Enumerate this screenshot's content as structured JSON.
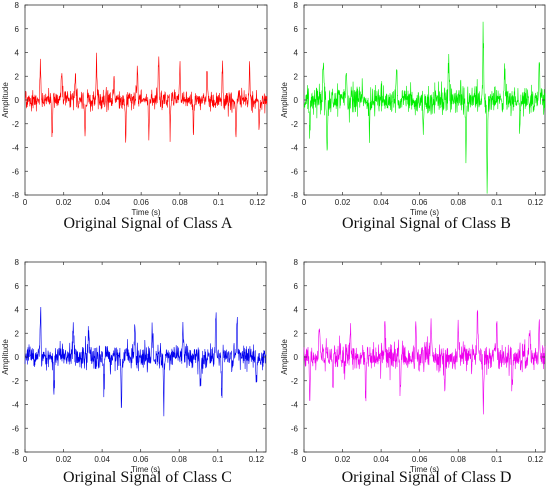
{
  "chart_data": [
    {
      "type": "line",
      "caption": "Original Signal of Class A",
      "xlabel": "Time (s)",
      "ylabel": "Amplitude",
      "xlim": [
        0,
        0.125
      ],
      "ylim": [
        -8,
        8
      ],
      "xticks": [
        "0",
        "0.02",
        "0.04",
        "0.06",
        "0.08",
        "0.1",
        "0.12"
      ],
      "yticks": [
        "-8",
        "-6",
        "-4",
        "-2",
        "0",
        "2",
        "4",
        "6",
        "8"
      ],
      "color": "#ff0000",
      "signal": {
        "samples": 900,
        "base_amplitude": 0.75,
        "seed": 11,
        "spikes": [
          [
            0.008,
            3.4
          ],
          [
            0.014,
            -3.2
          ],
          [
            0.019,
            3.0
          ],
          [
            0.026,
            2.6
          ],
          [
            0.031,
            -3.0
          ],
          [
            0.037,
            3.6
          ],
          [
            0.046,
            2.8
          ],
          [
            0.052,
            -3.5
          ],
          [
            0.058,
            3.1
          ],
          [
            0.064,
            -3.3
          ],
          [
            0.069,
            3.5
          ],
          [
            0.075,
            -3.0
          ],
          [
            0.08,
            2.8
          ],
          [
            0.087,
            -3.2
          ],
          [
            0.094,
            3.0
          ],
          [
            0.102,
            3.2
          ],
          [
            0.109,
            -3.3
          ],
          [
            0.116,
            3.0
          ],
          [
            0.121,
            -3.1
          ]
        ]
      }
    },
    {
      "type": "line",
      "caption": "Original Signal of Class B",
      "xlabel": "Time (s)",
      "ylabel": "Amplitude",
      "xlim": [
        0,
        0.125
      ],
      "ylim": [
        -8,
        8
      ],
      "xticks": [
        "0",
        "0.02",
        "0.04",
        "0.06",
        "0.08",
        "0.1",
        "0.12"
      ],
      "yticks": [
        "-8",
        "-6",
        "-4",
        "-2",
        "0",
        "2",
        "4",
        "6",
        "8"
      ],
      "color": "#00ee00",
      "signal": {
        "samples": 900,
        "base_amplitude": 1.1,
        "seed": 23,
        "spikes": [
          [
            0.003,
            -3.0
          ],
          [
            0.01,
            4.2
          ],
          [
            0.012,
            -5.2
          ],
          [
            0.022,
            3.0
          ],
          [
            0.034,
            -3.2
          ],
          [
            0.048,
            2.8
          ],
          [
            0.062,
            -3.0
          ],
          [
            0.075,
            3.2
          ],
          [
            0.084,
            -5.0
          ],
          [
            0.093,
            6.3
          ],
          [
            0.095,
            -7.4
          ],
          [
            0.104,
            3.2
          ],
          [
            0.112,
            -3.4
          ],
          [
            0.122,
            3.6
          ]
        ]
      }
    },
    {
      "type": "line",
      "caption": "Original Signal of Class C",
      "xlabel": "Time (s)",
      "ylabel": "Amplitude",
      "xlim": [
        0,
        0.125
      ],
      "ylim": [
        -8,
        8
      ],
      "xticks": [
        "0",
        "0.02",
        "0.04",
        "0.06",
        "0.08",
        "0.1",
        "0.12"
      ],
      "yticks": [
        "-8",
        "-6",
        "-4",
        "-2",
        "0",
        "2",
        "4",
        "6",
        "8"
      ],
      "color": "#0000ee",
      "signal": {
        "samples": 900,
        "base_amplitude": 0.95,
        "seed": 37,
        "spikes": [
          [
            0.008,
            4.0
          ],
          [
            0.015,
            -3.2
          ],
          [
            0.025,
            3.2
          ],
          [
            0.033,
            3.0
          ],
          [
            0.041,
            -3.0
          ],
          [
            0.05,
            -4.6
          ],
          [
            0.057,
            3.2
          ],
          [
            0.066,
            3.0
          ],
          [
            0.072,
            -3.8
          ],
          [
            0.082,
            3.0
          ],
          [
            0.091,
            -3.4
          ],
          [
            0.099,
            4.1
          ],
          [
            0.102,
            -4.4
          ],
          [
            0.11,
            3.2
          ],
          [
            0.12,
            -3.0
          ]
        ]
      }
    },
    {
      "type": "line",
      "caption": "Original Signal of Class D",
      "xlabel": "Time (s)",
      "ylabel": "Amplitude",
      "xlim": [
        0,
        0.125
      ],
      "ylim": [
        -8,
        8
      ],
      "xticks": [
        "0",
        "0.02",
        "0.04",
        "0.06",
        "0.08",
        "0.1",
        "0.12"
      ],
      "yticks": [
        "-8",
        "-6",
        "-4",
        "-2",
        "0",
        "2",
        "4",
        "6",
        "8"
      ],
      "color": "#ee00ee",
      "signal": {
        "samples": 900,
        "base_amplitude": 1.05,
        "seed": 53,
        "spikes": [
          [
            0.003,
            -3.8
          ],
          [
            0.008,
            3.2
          ],
          [
            0.015,
            -3.0
          ],
          [
            0.024,
            3.4
          ],
          [
            0.032,
            -3.6
          ],
          [
            0.042,
            3.0
          ],
          [
            0.05,
            -4.0
          ],
          [
            0.058,
            3.4
          ],
          [
            0.066,
            3.2
          ],
          [
            0.073,
            -3.4
          ],
          [
            0.08,
            3.0
          ],
          [
            0.09,
            4.6
          ],
          [
            0.093,
            -5.4
          ],
          [
            0.1,
            3.2
          ],
          [
            0.108,
            -3.6
          ],
          [
            0.117,
            3.0
          ],
          [
            0.122,
            3.6
          ]
        ]
      }
    }
  ]
}
